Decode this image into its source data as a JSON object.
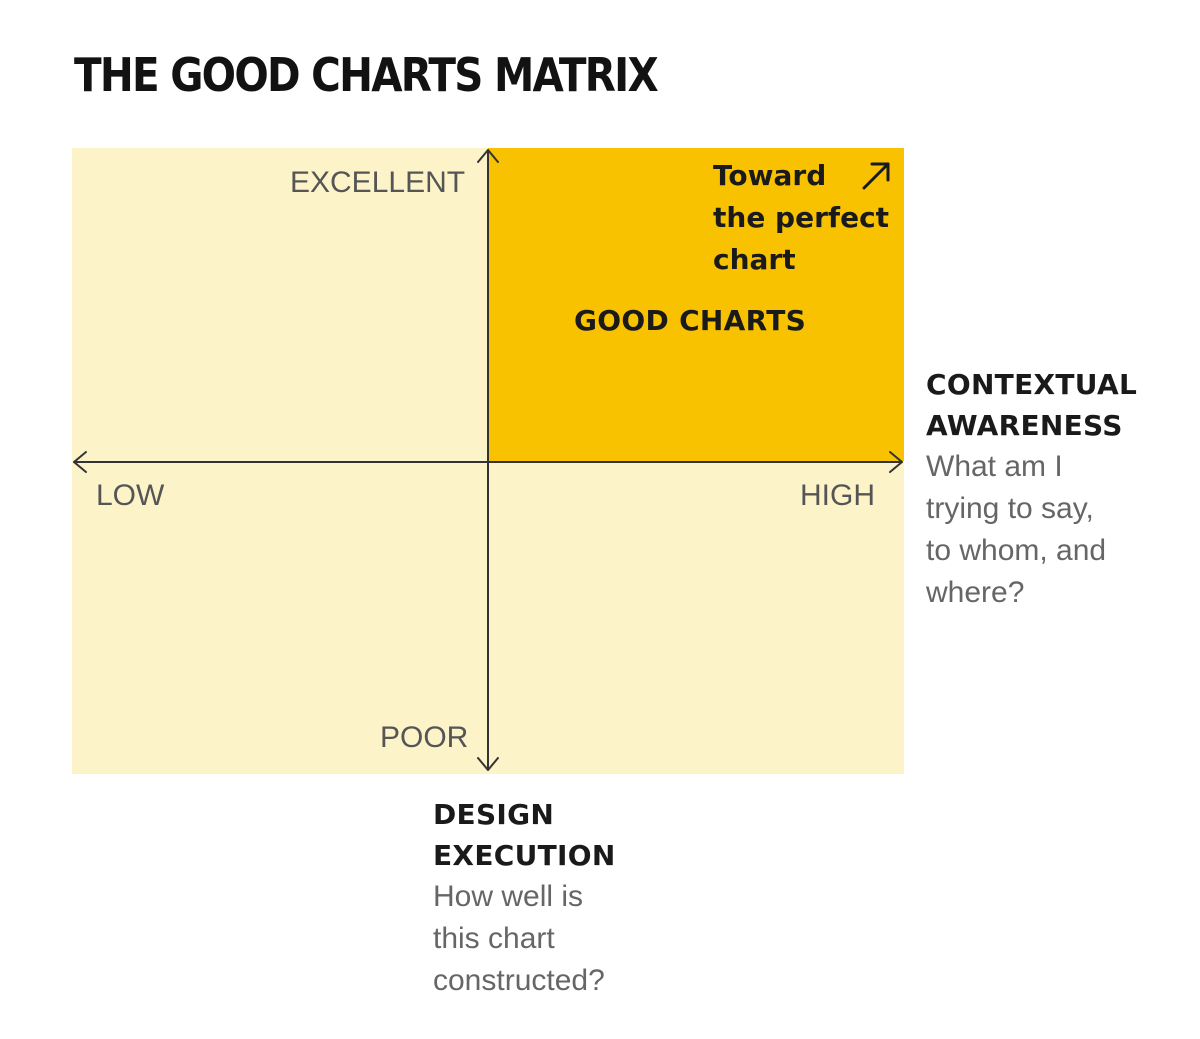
{
  "title": "THE GOOD CHARTS MATRIX",
  "colors": {
    "background": "#ffffff",
    "matrix_fill": "#fdf3c8",
    "good_quadrant_fill": "#f8c200",
    "axis_line": "#333333"
  },
  "vertical_axis": {
    "top_label": "EXCELLENT",
    "bottom_label": "POOR",
    "title_lines": [
      "DESIGN",
      "EXECUTION"
    ],
    "question_lines": [
      "How well is",
      "this chart",
      "constructed?"
    ]
  },
  "horizontal_axis": {
    "left_label": "LOW",
    "right_label": "HIGH",
    "title_lines": [
      "CONTEXTUAL",
      "AWARENESS"
    ],
    "question_lines": [
      "What am I",
      "trying to say,",
      "to whom, and",
      "where?"
    ]
  },
  "good_quadrant": {
    "label": "GOOD CHARTS",
    "perfect_lines": [
      "Toward",
      "the perfect",
      "chart"
    ],
    "arrow_icon": "arrow-up-right-icon"
  }
}
